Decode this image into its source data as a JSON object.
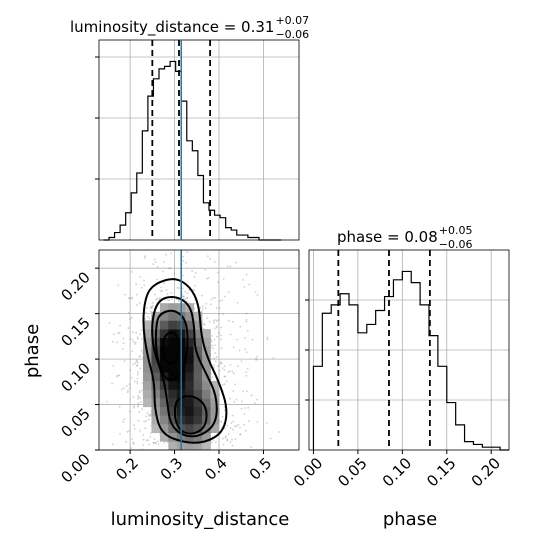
{
  "chart_data": [
    {
      "type": "histogram",
      "panel": "top-left",
      "parameter": "luminosity_distance",
      "title": {
        "main": "luminosity_distance = 0.31",
        "sup": "+0.07",
        "sub": "−0.06"
      },
      "xlim": [
        0.13,
        0.58
      ],
      "bin_edges": [
        0.14,
        0.1525,
        0.165,
        0.1775,
        0.19,
        0.2025,
        0.215,
        0.2275,
        0.24,
        0.2525,
        0.265,
        0.2775,
        0.29,
        0.3025,
        0.315,
        0.3275,
        0.34,
        0.3525,
        0.365,
        0.3775,
        0.39,
        0.4025,
        0.415,
        0.4275,
        0.44,
        0.4525,
        0.465,
        0.4775,
        0.49,
        0.5025,
        0.515,
        0.5275,
        0.54
      ],
      "counts": [
        0,
        1,
        3,
        6,
        11,
        19,
        27,
        44,
        58,
        65,
        69,
        70,
        72,
        68,
        56,
        40,
        36,
        26,
        15,
        12,
        10,
        9,
        5,
        4,
        2,
        2,
        1,
        1,
        0,
        0,
        0,
        0
      ],
      "quantiles": [
        0.25,
        0.31,
        0.38
      ],
      "truth": 0.315,
      "grid": true
    },
    {
      "type": "heatmap",
      "panel": "bottom-left",
      "xlabel": "luminosity_distance",
      "ylabel": "phase",
      "xlim": [
        0.13,
        0.58
      ],
      "ylim": [
        0.0,
        0.22
      ],
      "xticks": [
        "0.2",
        "0.3",
        "0.4",
        "0.5"
      ],
      "yticks": [
        "0.00",
        "0.05",
        "0.10",
        "0.15",
        "0.20"
      ],
      "truth_x": 0.315,
      "density_peaks": [
        {
          "x": 0.3,
          "y": 0.107,
          "level": "high"
        },
        {
          "x": 0.335,
          "y": 0.037,
          "level": "mid"
        }
      ],
      "contour_levels": 4,
      "grid": true
    },
    {
      "type": "histogram",
      "panel": "bottom-right",
      "parameter": "phase",
      "title": {
        "main": "phase = 0.08",
        "sup": "+0.05",
        "sub": "−0.06"
      },
      "xlabel": "phase",
      "xlim": [
        -0.005,
        0.22
      ],
      "xticks": [
        "0.00",
        "0.05",
        "0.10",
        "0.15",
        "0.20"
      ],
      "bin_edges": [
        0.0,
        0.01,
        0.02,
        0.03,
        0.04,
        0.05,
        0.06,
        0.07,
        0.08,
        0.09,
        0.1,
        0.11,
        0.12,
        0.13,
        0.14,
        0.15,
        0.16,
        0.17,
        0.18,
        0.19,
        0.2,
        0.21,
        0.22
      ],
      "counts": [
        30,
        49,
        52,
        56,
        52,
        42,
        45,
        50,
        55,
        61,
        64,
        60,
        52,
        41,
        30,
        17,
        9,
        3,
        2,
        1,
        1,
        0
      ],
      "quantiles": [
        0.028,
        0.085,
        0.131
      ],
      "grid": true
    }
  ]
}
